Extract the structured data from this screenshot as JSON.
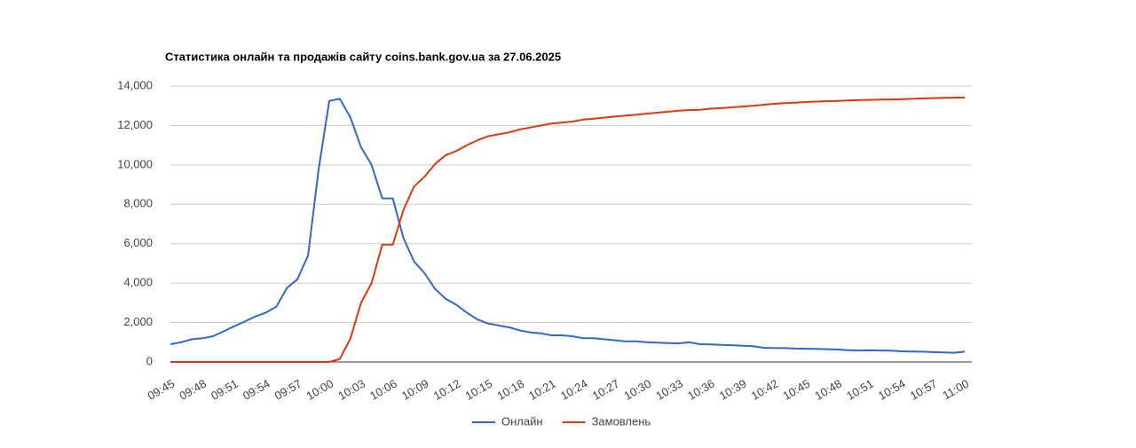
{
  "chart_data": {
    "type": "line",
    "title": "Статистика онлайн та продажів сайту coins.bank.gov.ua за 27.06.2025",
    "categories": [
      "09:45",
      null,
      null,
      "09:48",
      null,
      null,
      "09:51",
      null,
      null,
      "09:54",
      null,
      null,
      "09:57",
      null,
      null,
      "10:00",
      null,
      null,
      "10:03",
      null,
      null,
      "10:06",
      null,
      null,
      "10:09",
      null,
      null,
      "10:12",
      null,
      null,
      "10:15",
      null,
      null,
      "10:18",
      null,
      null,
      "10:21",
      null,
      null,
      "10:24",
      null,
      null,
      "10:27",
      null,
      null,
      "10:30",
      null,
      null,
      "10:33",
      null,
      null,
      "10:36",
      null,
      null,
      "10:39",
      null,
      null,
      "10:42",
      null,
      null,
      "10:45",
      null,
      null,
      "10:48",
      null,
      null,
      "10:51",
      null,
      null,
      "10:54",
      null,
      null,
      "10:57",
      null,
      null,
      "11:00"
    ],
    "series": [
      {
        "name": "Онлайн",
        "color": "#3366cc",
        "values": [
          900,
          1000,
          1150,
          1200,
          1300,
          1550,
          1800,
          2050,
          2300,
          2500,
          2800,
          3750,
          4200,
          5400,
          9800,
          13250,
          13350,
          12400,
          10900,
          10000,
          8300,
          8300,
          6300,
          5100,
          4500,
          3700,
          3200,
          2900,
          2500,
          2150,
          1950,
          1850,
          1750,
          1600,
          1500,
          1450,
          1350,
          1350,
          1300,
          1200,
          1200,
          1150,
          1100,
          1050,
          1050,
          1000,
          980,
          960,
          940,
          1000,
          900,
          890,
          870,
          850,
          820,
          800,
          720,
          700,
          700,
          680,
          670,
          660,
          650,
          630,
          600,
          580,
          590,
          580,
          570,
          540,
          530,
          520,
          500,
          480,
          470,
          520
        ]
      },
      {
        "name": "Замовлень",
        "color": "#dc3912",
        "values": [
          0,
          0,
          0,
          0,
          0,
          0,
          0,
          0,
          0,
          0,
          0,
          0,
          0,
          0,
          0,
          0,
          150,
          1200,
          3000,
          4000,
          5950,
          5950,
          7700,
          8900,
          9400,
          10050,
          10500,
          10700,
          11000,
          11250,
          11450,
          11550,
          11650,
          11800,
          11900,
          12000,
          12100,
          12150,
          12200,
          12300,
          12350,
          12400,
          12450,
          12500,
          12550,
          12600,
          12650,
          12700,
          12750,
          12780,
          12800,
          12850,
          12880,
          12920,
          12960,
          13000,
          13050,
          13100,
          13130,
          13160,
          13190,
          13210,
          13230,
          13250,
          13270,
          13290,
          13300,
          13310,
          13320,
          13330,
          13350,
          13370,
          13390,
          13400,
          13410,
          13420
        ]
      }
    ],
    "ylim": [
      0,
      14000
    ],
    "yticks": [
      0,
      {
        "value": 2000,
        "label": "2,000"
      },
      {
        "value": 4000,
        "label": "4,000"
      },
      {
        "value": 6000,
        "label": "6,000"
      },
      {
        "value": 8000,
        "label": "8,000"
      },
      {
        "value": 10000,
        "label": "10,000"
      },
      {
        "value": 12000,
        "label": "12,000"
      },
      {
        "value": 14000,
        "label": "14,000"
      }
    ],
    "grid": true,
    "legend": "bottom"
  }
}
